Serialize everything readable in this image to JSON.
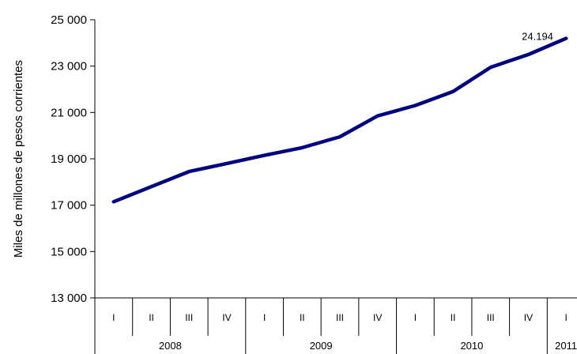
{
  "chart_data": {
    "type": "line",
    "title": "",
    "xlabel": "",
    "ylabel": "Miles de millones de pesos corrientes",
    "ylim": [
      13000,
      25000
    ],
    "yticks": [
      13000,
      15000,
      17000,
      19000,
      21000,
      23000,
      25000
    ],
    "ytick_labels": [
      "13 000",
      "15 000",
      "17 000",
      "19 000",
      "21 000",
      "23 000",
      "25 000"
    ],
    "grid": false,
    "legend": "none",
    "categories": [
      "I",
      "II",
      "III",
      "IV",
      "I",
      "II",
      "III",
      "IV",
      "I",
      "II",
      "III",
      "IV",
      "I"
    ],
    "years": [
      {
        "label": "2008",
        "span": 4
      },
      {
        "label": "2009",
        "span": 4
      },
      {
        "label": "2010",
        "span": 4
      },
      {
        "label": "2011",
        "span": 1
      }
    ],
    "series": [
      {
        "color": "#000080",
        "points": [
          {
            "x": "2008-I",
            "y": 17150
          },
          {
            "x": "2008-II",
            "y": 17800
          },
          {
            "x": "2008-III",
            "y": 18450
          },
          {
            "x": "2008-IV",
            "y": 18800
          },
          {
            "x": "2009-I",
            "y": 19150
          },
          {
            "x": "2009-II",
            "y": 19480
          },
          {
            "x": "2009-III",
            "y": 19950
          },
          {
            "x": "2009-IV",
            "y": 20850
          },
          {
            "x": "2010-I",
            "y": 21300
          },
          {
            "x": "2010-II",
            "y": 21900
          },
          {
            "x": "2010-III",
            "y": 22950
          },
          {
            "x": "2010-IV",
            "y": 23500
          },
          {
            "x": "2011-I",
            "y": 24194
          }
        ],
        "values": [
          17150,
          17800,
          18450,
          18800,
          19150,
          19480,
          19950,
          20850,
          21300,
          21900,
          22950,
          23500,
          24194
        ]
      }
    ],
    "annotations": [
      {
        "text": "24.194",
        "at_category_index": 12,
        "value": 24194
      }
    ]
  }
}
